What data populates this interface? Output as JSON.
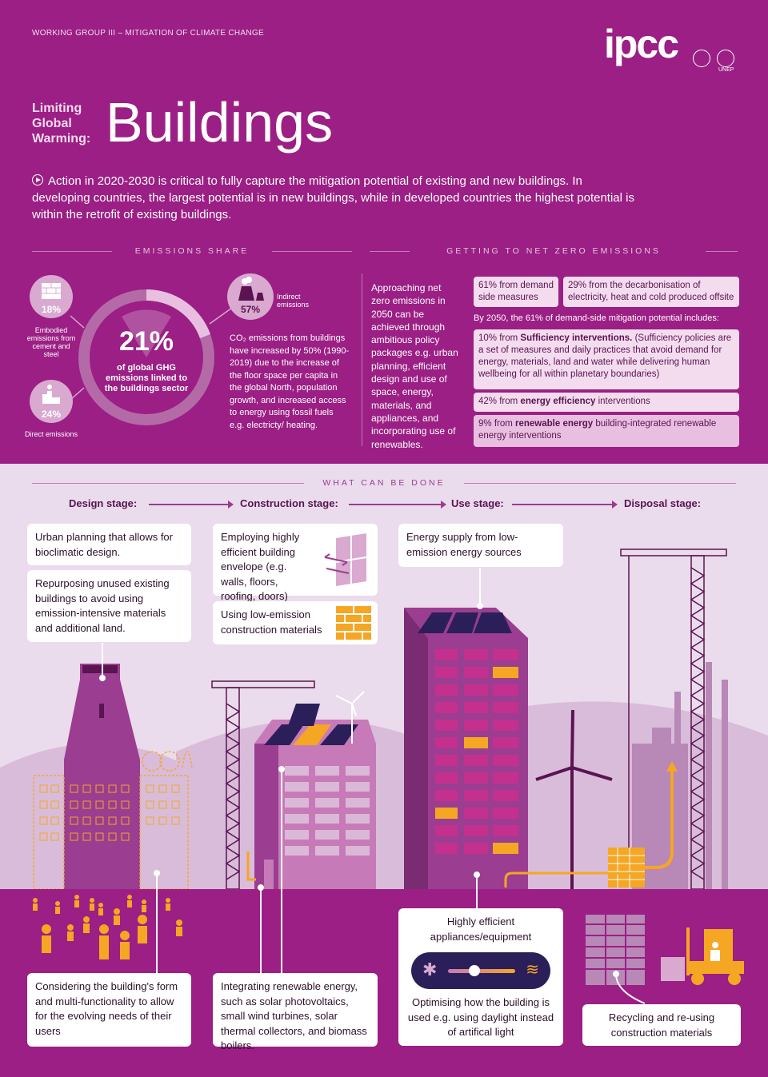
{
  "header": {
    "working_group": "WORKING GROUP III – MITIGATION OF CLIMATE CHANGE",
    "logo": "ipcc",
    "unep": "UNEP",
    "limiting": "Limiting Global Warming:",
    "title": "Buildings"
  },
  "intro": "Action in 2020-2030 is critical to fully capture the mitigation potential of existing and new buildings. In developing countries, the largest potential is in new buildings, while in developed countries the highest potential is within the retrofit of existing buildings.",
  "emissions": {
    "heading": "EMISSIONS SHARE",
    "main_pct": "21%",
    "main_label": "of global GHG emissions linked to the buildings sector",
    "embodied_pct": "18%",
    "embodied_label": "Embodied emissions from cement and steel",
    "direct_pct": "24%",
    "direct_label": "Direct emissions",
    "indirect_pct": "57%",
    "indirect_label": "Indirect emissions",
    "co2_text": "CO₂ emissions from buildings have increased by 50% (1990-2019) due to the increase of the floor space per capita in the global North, population growth, and increased access to energy using fossil fuels e.g. electricty/ heating."
  },
  "net_zero": {
    "heading": "GETTING TO NET ZERO EMISSIONS",
    "approach": "Approaching net zero emissions in 2050 can be achieved through ambitious policy packages e.g. urban planning, efficient design and use of space, energy, materials, and appliances, and incorporating use of renewables.",
    "demand_side": "61% from demand side measures",
    "decarbonisation": "29% from the decarbonisation of electricity, heat and cold produced offsite",
    "by_2050": "By 2050, the 61% of demand-side mitigation potential includes:",
    "sufficiency_pre": "10% from ",
    "sufficiency_bold": "Sufficiency interventions.",
    "sufficiency_post": " (Sufficiency policies are a set of measures and daily practices that avoid demand for energy, materials, land and water while delivering human wellbeing for all within planetary boundaries)",
    "efficiency_pre": "42% from ",
    "efficiency_bold": "energy efficiency",
    "efficiency_post": " interventions",
    "renewable_pre": "9% from ",
    "renewable_bold": "renewable energy",
    "renewable_post": " building-integrated renewable energy interventions"
  },
  "what_can_be_done": {
    "heading": "WHAT CAN BE DONE",
    "stages": [
      "Design stage:",
      "Construction stage:",
      "Use stage:",
      "Disposal stage:"
    ],
    "urban_planning": "Urban planning that allows for bioclimatic design.",
    "repurposing": "Repurposing unused existing buildings to avoid using emission-intensive materials and additional land.",
    "envelope": "Employing highly efficient building envelope (e.g. walls, floors, roofing, doors)",
    "low_emission": "Using low-emission construction materials",
    "energy_supply": "Energy supply from low-emission energy sources",
    "form": "Considering the building's form and multi-functionality to allow for the evolving needs of their users",
    "renewable": "Integrating renewable energy, such as solar photovoltaics, small wind turbines, solar thermal collectors, and biomass boilers.",
    "appliances": "Highly efficient appliances/equipment",
    "optimising": "Optimising how the building is used e.g. using daylight instead of artifical light",
    "recycling": "Recycling and re-using construction materials"
  },
  "colors": {
    "magenta": "#9b1f84",
    "light_pink": "#f4dcef",
    "lavender": "#eadcec",
    "orange": "#f5a623",
    "dark_navy": "#2b1f5a"
  }
}
